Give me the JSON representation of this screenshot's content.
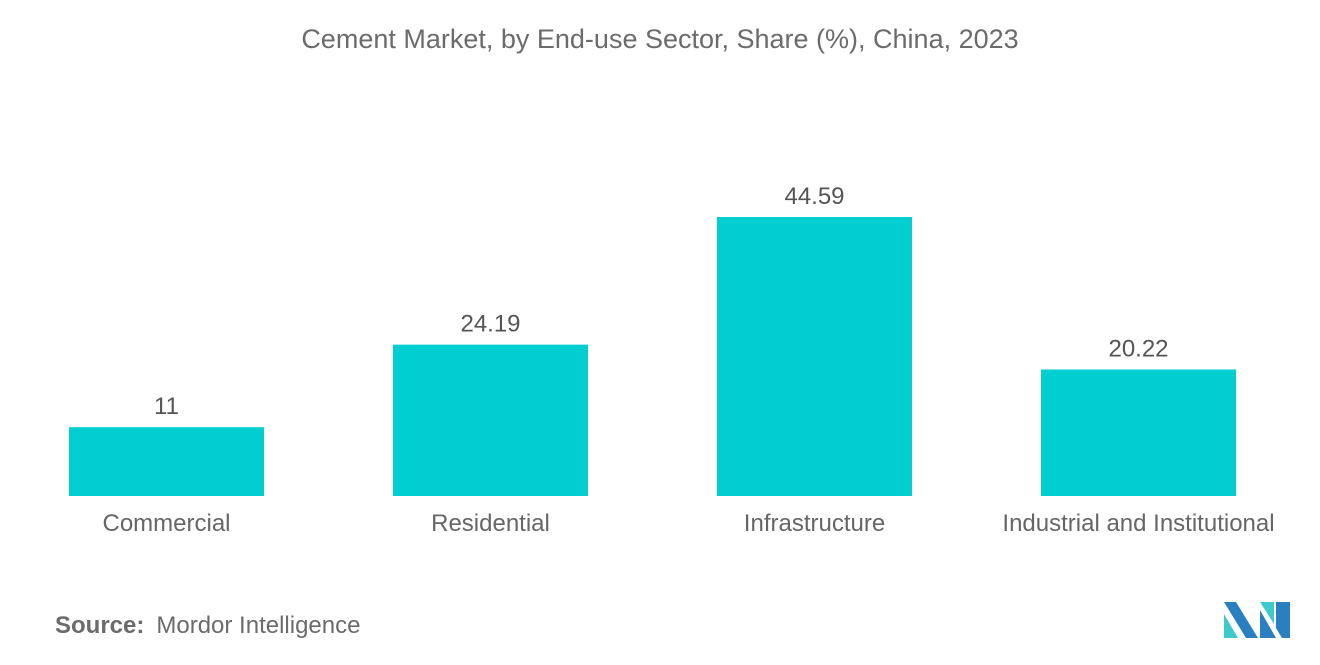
{
  "chart_data": {
    "type": "bar",
    "title": "Cement Market, by End-use Sector, Share (%), China, 2023",
    "categories": [
      "Commercial",
      "Residential",
      "Infrastructure",
      "Industrial and Institutional"
    ],
    "values": [
      11,
      24.19,
      44.59,
      20.22
    ],
    "value_labels": [
      "11",
      "24.19",
      "44.59",
      "20.22"
    ],
    "xlabel": "",
    "ylabel": "",
    "ylim": [
      0,
      50
    ],
    "grid": false,
    "bar_color": "#00ced1"
  },
  "source": {
    "label": "Source:",
    "value": "Mordor Intelligence"
  },
  "logo": {
    "text": "Mordor Intelligence",
    "colors": [
      "#2a7fc1",
      "#3ec9cc"
    ]
  }
}
